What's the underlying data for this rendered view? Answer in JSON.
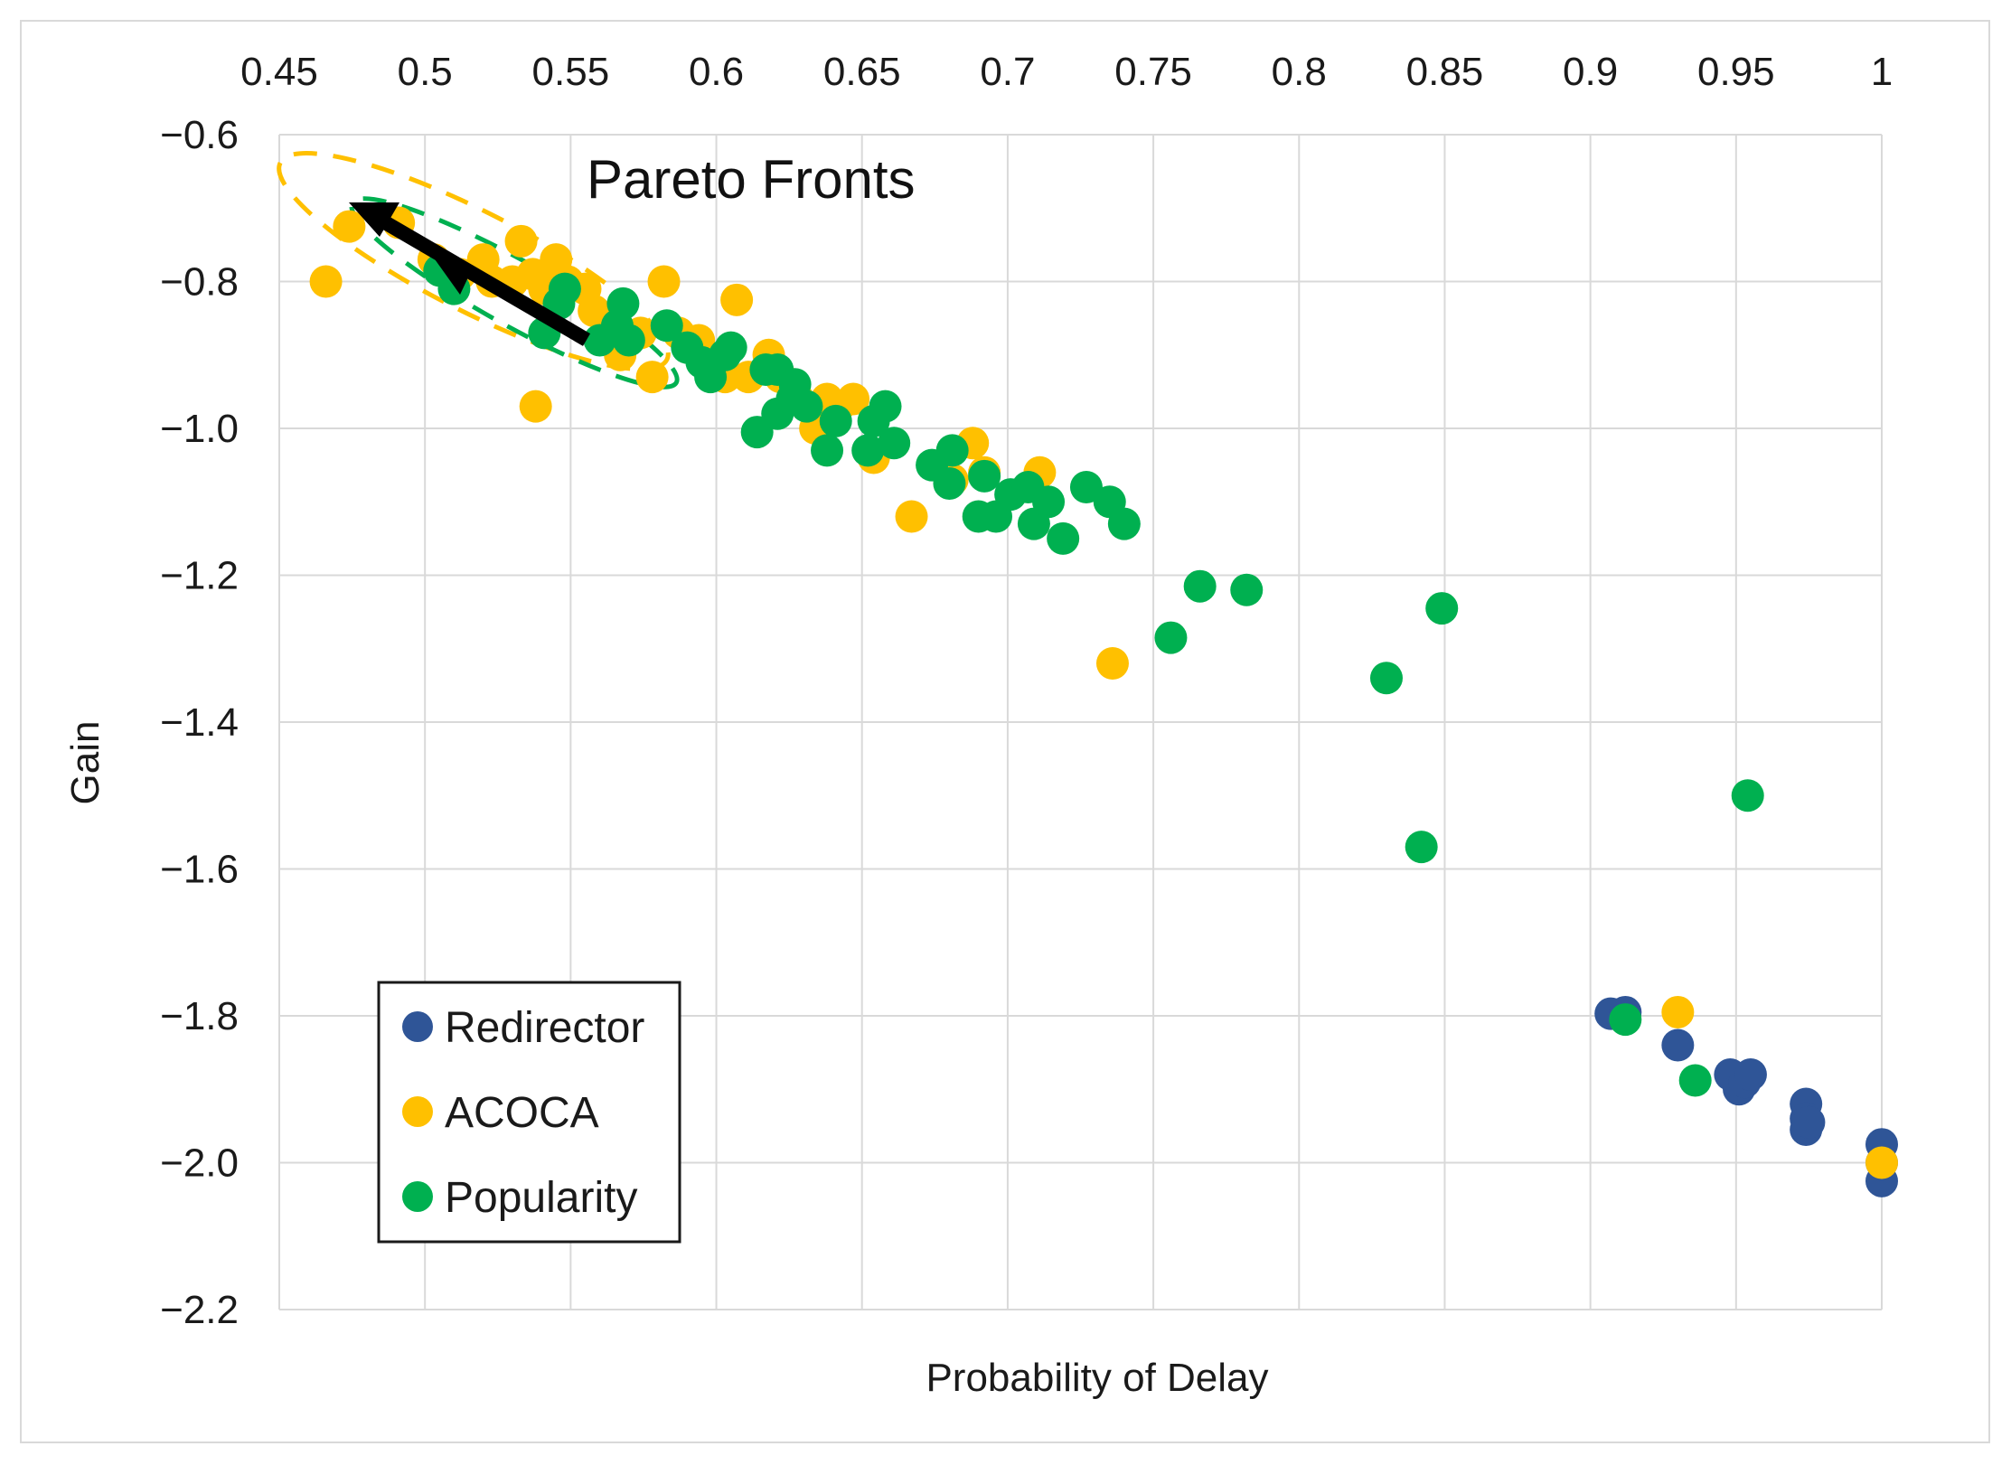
{
  "chart_data": {
    "type": "scatter",
    "title": "",
    "xlabel": "Probability of Delay",
    "ylabel": "Gain",
    "xlim": [
      0.45,
      1.0
    ],
    "ylim": [
      -2.2,
      -0.6
    ],
    "xticks": [
      0.45,
      0.5,
      0.55,
      0.6,
      0.65,
      0.7,
      0.75,
      0.8,
      0.85,
      0.9,
      0.95,
      1
    ],
    "xtick_labels": [
      "0.45",
      "0.5",
      "0.55",
      "0.6",
      "0.65",
      "0.7",
      "0.75",
      "0.8",
      "0.85",
      "0.9",
      "0.95",
      "1"
    ],
    "yticks": [
      -0.6,
      -0.8,
      -1.0,
      -1.2,
      -1.4,
      -1.6,
      -1.8,
      -2.0,
      -2.2
    ],
    "ytick_labels": [
      "−0.6",
      "−0.8",
      "−1.0",
      "−1.2",
      "−1.4",
      "−1.6",
      "−1.8",
      "−2.0",
      "−2.2"
    ],
    "x_axis_position": "top",
    "grid": true,
    "legend_position": "bottom-left",
    "annotation": "Pareto Fronts",
    "series": [
      {
        "name": "Redirector",
        "color": "#2f5597",
        "points": [
          [
            0.907,
            -1.797
          ],
          [
            0.912,
            -1.795
          ],
          [
            0.93,
            -1.84
          ],
          [
            0.948,
            -1.88
          ],
          [
            0.951,
            -1.9
          ],
          [
            0.953,
            -1.89
          ],
          [
            0.955,
            -1.88
          ],
          [
            0.974,
            -1.92
          ],
          [
            0.974,
            -1.94
          ],
          [
            0.974,
            -1.955
          ],
          [
            0.975,
            -1.945
          ],
          [
            1.0,
            -1.975
          ],
          [
            1.0,
            -2.0
          ],
          [
            1.0,
            -2.025
          ]
        ]
      },
      {
        "name": "ACOCA",
        "color": "#ffc000",
        "points": [
          [
            0.466,
            -0.8
          ],
          [
            0.474,
            -0.725
          ],
          [
            0.491,
            -0.72
          ],
          [
            0.503,
            -0.77
          ],
          [
            0.512,
            -0.79
          ],
          [
            0.52,
            -0.77
          ],
          [
            0.523,
            -0.8
          ],
          [
            0.53,
            -0.8
          ],
          [
            0.533,
            -0.745
          ],
          [
            0.537,
            -0.79
          ],
          [
            0.541,
            -0.81
          ],
          [
            0.545,
            -0.77
          ],
          [
            0.549,
            -0.8
          ],
          [
            0.555,
            -0.81
          ],
          [
            0.558,
            -0.84
          ],
          [
            0.563,
            -0.86
          ],
          [
            0.567,
            -0.9
          ],
          [
            0.574,
            -0.87
          ],
          [
            0.578,
            -0.93
          ],
          [
            0.582,
            -0.8
          ],
          [
            0.587,
            -0.87
          ],
          [
            0.59,
            -0.88
          ],
          [
            0.594,
            -0.88
          ],
          [
            0.6,
            -0.91
          ],
          [
            0.603,
            -0.93
          ],
          [
            0.607,
            -0.825
          ],
          [
            0.611,
            -0.93
          ],
          [
            0.618,
            -0.9
          ],
          [
            0.622,
            -0.93
          ],
          [
            0.628,
            -0.96
          ],
          [
            0.634,
            -1.0
          ],
          [
            0.638,
            -0.96
          ],
          [
            0.642,
            -0.97
          ],
          [
            0.647,
            -0.96
          ],
          [
            0.654,
            -1.04
          ],
          [
            0.667,
            -1.12
          ],
          [
            0.681,
            -1.07
          ],
          [
            0.688,
            -1.02
          ],
          [
            0.692,
            -1.06
          ],
          [
            0.711,
            -1.06
          ],
          [
            0.736,
            -1.32
          ],
          [
            0.538,
            -0.97
          ],
          [
            0.93,
            -1.795
          ],
          [
            1.0,
            -2.0
          ]
        ]
      },
      {
        "name": "Popularity",
        "color": "#00b050",
        "points": [
          [
            0.505,
            -0.785
          ],
          [
            0.51,
            -0.81
          ],
          [
            0.541,
            -0.87
          ],
          [
            0.546,
            -0.83
          ],
          [
            0.548,
            -0.81
          ],
          [
            0.56,
            -0.88
          ],
          [
            0.566,
            -0.86
          ],
          [
            0.568,
            -0.83
          ],
          [
            0.57,
            -0.88
          ],
          [
            0.583,
            -0.86
          ],
          [
            0.59,
            -0.89
          ],
          [
            0.595,
            -0.91
          ],
          [
            0.598,
            -0.93
          ],
          [
            0.603,
            -0.9
          ],
          [
            0.605,
            -0.89
          ],
          [
            0.614,
            -1.005
          ],
          [
            0.617,
            -0.92
          ],
          [
            0.621,
            -0.92
          ],
          [
            0.621,
            -0.98
          ],
          [
            0.626,
            -0.96
          ],
          [
            0.627,
            -0.94
          ],
          [
            0.631,
            -0.97
          ],
          [
            0.638,
            -1.03
          ],
          [
            0.641,
            -0.99
          ],
          [
            0.652,
            -1.03
          ],
          [
            0.654,
            -0.99
          ],
          [
            0.658,
            -0.97
          ],
          [
            0.661,
            -1.02
          ],
          [
            0.674,
            -1.05
          ],
          [
            0.68,
            -1.075
          ],
          [
            0.681,
            -1.03
          ],
          [
            0.69,
            -1.12
          ],
          [
            0.692,
            -1.065
          ],
          [
            0.696,
            -1.12
          ],
          [
            0.701,
            -1.09
          ],
          [
            0.707,
            -1.08
          ],
          [
            0.709,
            -1.13
          ],
          [
            0.714,
            -1.1
          ],
          [
            0.719,
            -1.15
          ],
          [
            0.727,
            -1.08
          ],
          [
            0.735,
            -1.1
          ],
          [
            0.74,
            -1.13
          ],
          [
            0.756,
            -1.285
          ],
          [
            0.766,
            -1.215
          ],
          [
            0.782,
            -1.22
          ],
          [
            0.83,
            -1.34
          ],
          [
            0.842,
            -1.57
          ],
          [
            0.849,
            -1.245
          ],
          [
            0.954,
            -1.5
          ],
          [
            0.912,
            -1.805
          ],
          [
            0.936,
            -1.888
          ]
        ]
      }
    ]
  }
}
